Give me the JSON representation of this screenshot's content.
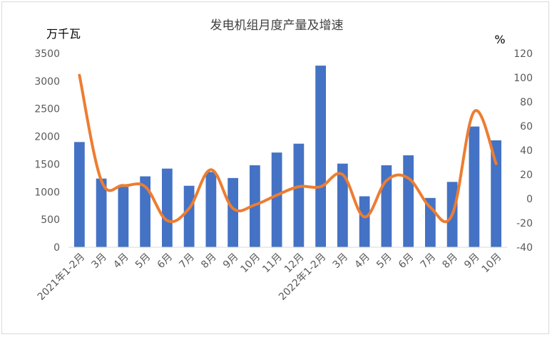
{
  "chart_data": {
    "type": "bar+line",
    "title": "发电机组月度产量及增速",
    "left_axis_unit": "万千瓦",
    "right_axis_unit": "%",
    "categories": [
      "2021年1-2月",
      "3月",
      "4月",
      "5月",
      "6月",
      "7月",
      "8月",
      "9月",
      "10月",
      "11月",
      "12月",
      "2022年1-2月",
      "3月",
      "4月",
      "5月",
      "6月",
      "7月",
      "8月",
      "9月",
      "10月"
    ],
    "bar_values": [
      1900,
      1240,
      1090,
      1280,
      1420,
      1110,
      1360,
      1250,
      1480,
      1710,
      1870,
      3280,
      1510,
      920,
      1480,
      1660,
      890,
      1180,
      2180,
      1930
    ],
    "line_values": [
      102,
      15,
      11,
      10,
      -18,
      -8,
      24,
      -8,
      -5,
      3,
      10,
      10,
      20,
      -15,
      15,
      17,
      -7,
      -13,
      72,
      29
    ],
    "left_ylim": [
      0,
      3500
    ],
    "left_ticks": [
      "0",
      "500",
      "1000",
      "1500",
      "2000",
      "2500",
      "3000",
      "3500"
    ],
    "right_ylim": [
      -40,
      120
    ],
    "right_ticks": [
      "-40",
      "-20",
      "0",
      "20",
      "40",
      "60",
      "80",
      "100",
      "120"
    ],
    "bar_color": "#4472C4",
    "line_color": "#ED7D31",
    "grid": false,
    "legend": "none"
  }
}
